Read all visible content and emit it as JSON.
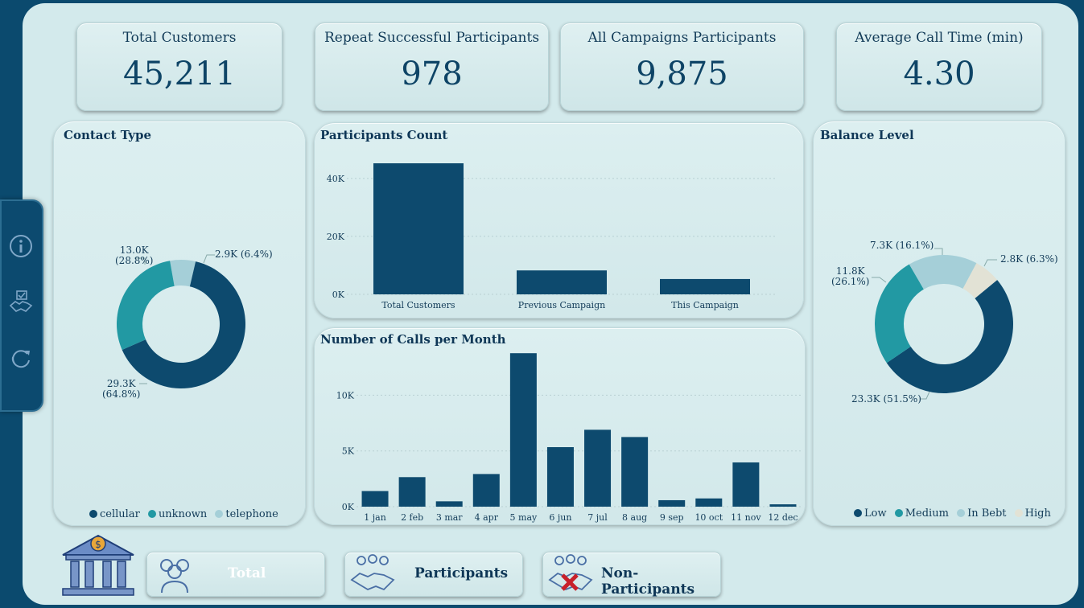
{
  "kpis": [
    {
      "label": "Total Customers",
      "value": "45,211"
    },
    {
      "label": "Repeat Successful Participants",
      "value": "978"
    },
    {
      "label": "All Campaigns Participants",
      "value": "9,875"
    },
    {
      "label": "Average Call Time (min)",
      "value": "4.30"
    }
  ],
  "contact_type": {
    "title": "Contact Type",
    "labels": {
      "unknown": [
        "13.0K",
        "(28.8%)"
      ],
      "telephone": "2.9K (6.4%)",
      "cellular": [
        "29.3K",
        "(64.8%)"
      ]
    },
    "legend": [
      "cellular",
      "unknown",
      "telephone"
    ]
  },
  "participants_count": {
    "title": "Participants Count",
    "yticks": [
      "40K",
      "20K",
      "0K"
    ],
    "categories": [
      "Total Customers",
      "Previous Campaign",
      "This Campaign"
    ]
  },
  "calls_per_month": {
    "title": "Number of Calls per Month",
    "yticks": [
      "10K",
      "5K",
      "0K"
    ],
    "categories": [
      "1 jan",
      "2 feb",
      "3 mar",
      "4 apr",
      "5 may",
      "6 jun",
      "7 jul",
      "8 aug",
      "9 sep",
      "10 oct",
      "11 nov",
      "12 dec"
    ]
  },
  "balance_level": {
    "title": "Balance Level",
    "labels": {
      "in_bebt": "7.3K (16.1%)",
      "high": "2.8K (6.3%)",
      "medium": [
        "11.8K",
        "(26.1%)"
      ],
      "low": "23.3K (51.5%)"
    },
    "legend": [
      "Low",
      "Medium",
      "In Bebt",
      "High"
    ]
  },
  "nav": {
    "total": "Total",
    "participants": "Participants",
    "non_participants": "Non-Participants"
  },
  "colors": {
    "dark": "#0d4a6e",
    "teal": "#2299a3",
    "light": "#a5cfd8",
    "beige": "#e2e2d5",
    "accent": "#7896c8"
  },
  "icons": {
    "side": [
      "info-icon",
      "handshake-checklist-icon",
      "refresh-icon"
    ],
    "bank": "bank-dollar-icon"
  },
  "chart_data": [
    {
      "type": "pie",
      "title": "Contact Type",
      "categories": [
        "cellular",
        "unknown",
        "telephone"
      ],
      "values": [
        29300,
        13000,
        2900
      ],
      "percent": [
        64.8,
        28.8,
        6.4
      ]
    },
    {
      "type": "bar",
      "title": "Participants Count",
      "categories": [
        "Total Customers",
        "Previous Campaign",
        "This Campaign"
      ],
      "values": [
        45211,
        8257,
        5289
      ],
      "ylim": [
        0,
        48000
      ],
      "yticks": [
        0,
        20000,
        40000
      ]
    },
    {
      "type": "bar",
      "title": "Number of Calls per Month",
      "categories": [
        "1 jan",
        "2 feb",
        "3 mar",
        "4 apr",
        "5 may",
        "6 jun",
        "7 jul",
        "8 aug",
        "9 sep",
        "10 oct",
        "11 nov",
        "12 dec"
      ],
      "values": [
        1400,
        2650,
        480,
        2930,
        13770,
        5340,
        6900,
        6250,
        580,
        740,
        3970,
        210
      ],
      "ylim": [
        0,
        14000
      ],
      "yticks": [
        0,
        5000,
        10000
      ]
    },
    {
      "type": "pie",
      "title": "Balance Level",
      "categories": [
        "Low",
        "Medium",
        "In Bebt",
        "High"
      ],
      "values": [
        23300,
        11800,
        7300,
        2800
      ],
      "percent": [
        51.5,
        26.1,
        16.1,
        6.3
      ]
    }
  ]
}
